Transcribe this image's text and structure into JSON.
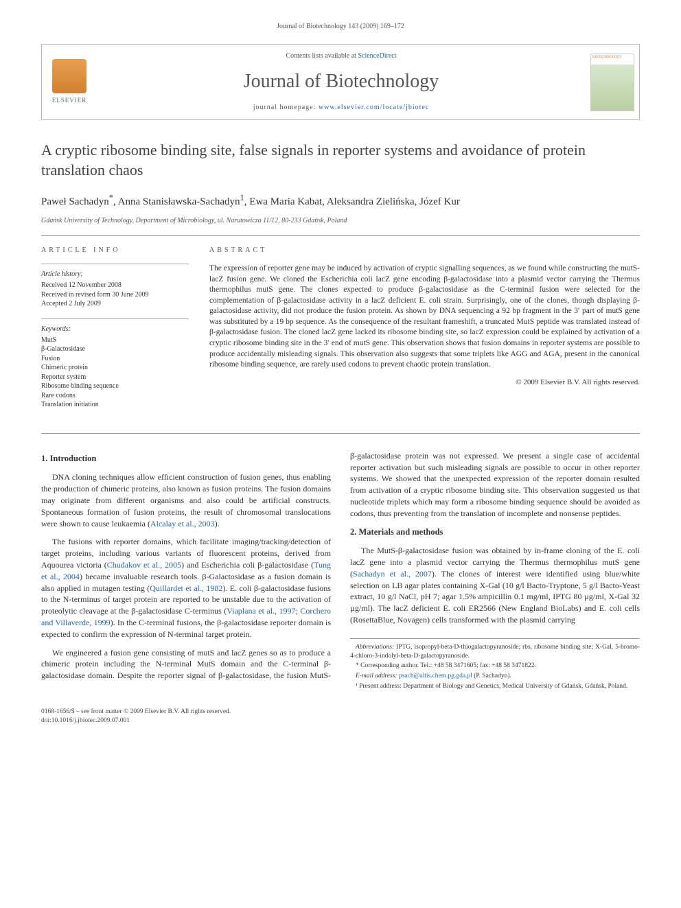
{
  "journal_ref": "Journal of Biotechnology 143 (2009) 169–172",
  "header": {
    "contents_prefix": "Contents lists available at ",
    "contents_link": "ScienceDirect",
    "journal_name": "Journal of Biotechnology",
    "homepage_prefix": "journal homepage: ",
    "homepage_url": "www.elsevier.com/locate/jbiotec",
    "elsevier_label": "ELSEVIER",
    "cover_label": "BIOTECHNOLOGY"
  },
  "article": {
    "title": "A cryptic ribosome binding site, false signals in reporter systems and avoidance of protein translation chaos",
    "authors_html": "Paweł Sachadyn<sup>*</sup>, Anna Stanisławska-Sachadyn<sup>1</sup>, Ewa Maria Kabat, Aleksandra Zielińska, Józef Kur",
    "affiliation": "Gdańsk University of Technology, Department of Microbiology, ul. Narutowicza 11/12, 80-233 Gdańsk, Poland"
  },
  "info": {
    "heading": "article info",
    "history_label": "Article history:",
    "received": "Received 12 November 2008",
    "revised": "Received in revised form 30 June 2009",
    "accepted": "Accepted 2 July 2009",
    "keywords_label": "Keywords:",
    "keywords": [
      "MutS",
      "β-Galactosidase",
      "Fusion",
      "Chimeric protein",
      "Reporter system",
      "Ribosome binding sequence",
      "Rare codons",
      "Translation initiation"
    ]
  },
  "abstract": {
    "heading": "abstract",
    "text": "The expression of reporter gene may be induced by activation of cryptic signalling sequences, as we found while constructing the mutS-lacZ fusion gene. We cloned the Escherichia coli lacZ gene encoding β-galactosidase into a plasmid vector carrying the Thermus thermophilus mutS gene. The clones expected to produce β-galactosidase as the C-terminal fusion were selected for the complementation of β-galactosidase activity in a lacZ deficient E. coli strain. Surprisingly, one of the clones, though displaying β-galactosidase activity, did not produce the fusion protein. As shown by DNA sequencing a 92 bp fragment in the 3′ part of mutS gene was substituted by a 19 bp sequence. As the consequence of the resultant frameshift, a truncated MutS peptide was translated instead of β-galactosidase fusion. The cloned lacZ gene lacked its ribosome binding site, so lacZ expression could be explained by activation of a cryptic ribosome binding site in the 3′ end of mutS gene. This observation shows that fusion domains in reporter systems are possible to produce accidentally misleading signals. This observation also suggests that some triplets like AGG and AGA, present in the canonical ribosome binding sequence, are rarely used codons to prevent chaotic protein translation.",
    "copyright": "© 2009 Elsevier B.V. All rights reserved."
  },
  "body": {
    "sec1_heading": "1.  Introduction",
    "sec1_p1": "DNA cloning techniques allow efficient construction of fusion genes, thus enabling the production of chimeric proteins, also known as fusion proteins. The fusion domains may originate from different organisms and also could be artificial constructs. Spontaneous formation of fusion proteins, the result of chromosomal translocations were shown to cause leukaemia (",
    "sec1_p1_ref": "Alcalay et al., 2003",
    "sec1_p1_tail": ").",
    "sec1_p2a": "The fusions with reporter domains, which facilitate imaging/tracking/detection of target proteins, including various variants of fluorescent proteins, derived from Aquourea victoria (",
    "sec1_p2_ref1": "Chudakov et al., 2005",
    "sec1_p2b": ") and Escherichia coli β-galactosidase (",
    "sec1_p2_ref2": "Tung et al., 2004",
    "sec1_p2c": ") became invaluable research tools. β-Galactosidase as a fusion domain is also applied in mutagen testing (",
    "sec1_p2_ref3": "Quillardet et al., 1982",
    "sec1_p2d": "). E. coli β-galactosidase fusions to the N-terminus of target protein are reported to be unstable due to the activation of proteolytic cleavage at the β-galactosidase C-terminus (",
    "sec1_p2_ref4": "Viaplana et al., 1997; Corchero and Villaverde, 1999",
    "sec1_p2e": "). In the C-terminal fusions, the β-galactosidase reporter domain is expected to confirm the expression of N-terminal target protein.",
    "sec1_p3": "We engineered a fusion gene consisting of mutS and lacZ genes so as to produce a chimeric protein including the N-terminal MutS domain and the C-terminal β-galactosidase domain. Despite the reporter signal of β-galactosidase, the fusion MutS-β-galactosidase protein was not expressed. We present a single case of accidental reporter activation but such misleading signals are possible to occur in other reporter systems. We showed that the unexpected expression of the reporter domain resulted from activation of a cryptic ribosome binding site. This observation suggested us that nucleotide triplets which may form a ribosome binding sequence should be avoided as codons, thus preventing from the translation of incomplete and nonsense peptides.",
    "sec2_heading": "2.  Materials and methods",
    "sec2_p1a": "The MutS-β-galactosidase fusion was obtained by in-frame cloning of the E. coli lacZ gene into a plasmid vector carrying the Thermus thermophilus mutS gene (",
    "sec2_p1_ref": "Sachadyn et al., 2007",
    "sec2_p1b": "). The clones of interest were identified using blue/white selection on LB agar plates containing X-Gal (10 g/l Bacto-Tryptone, 5 g/l Bacto-Yeast extract, 10 g/l NaCl, pH 7; agar 1.5% ampicillin 0.1 mg/ml, IPTG 80 µg/ml, X-Gal 32 µg/ml). The lacZ deficient E. coli ER2566 (New England BioLabs) and E. coli cells (RosettaBlue, Novagen) cells transformed with the plasmid carrying"
  },
  "footnotes": {
    "abbrev_label": "Abbreviations:",
    "abbrev_text": " IPTG, isopropyl-beta-D-thiogalactopyranoside; rbs, ribosome binding site; X-Gal, 5-bromo-4-chloro-3-indolyl-beta-D-galactopyranoside.",
    "corr_label": "* Corresponding author. Tel.: +48 58 3471605; fax: +48 58 3471822.",
    "email_label": "E-mail address: ",
    "email": "psach@altis.chem.pg.gda.pl",
    "email_tail": " (P. Sachadyn).",
    "note1": "¹ Present address: Department of Biology and Genetics, Medical University of Gdańsk, Gdańsk, Poland."
  },
  "footer": {
    "left1": "0168-1656/$ – see front matter © 2009 Elsevier B.V. All rights reserved.",
    "left2": "doi:10.1016/j.jbiotec.2009.07.001"
  },
  "colors": {
    "link": "#2266aa",
    "text": "#333333",
    "muted": "#555555",
    "rule": "#999999",
    "elsevier_orange": "#e8a050"
  }
}
